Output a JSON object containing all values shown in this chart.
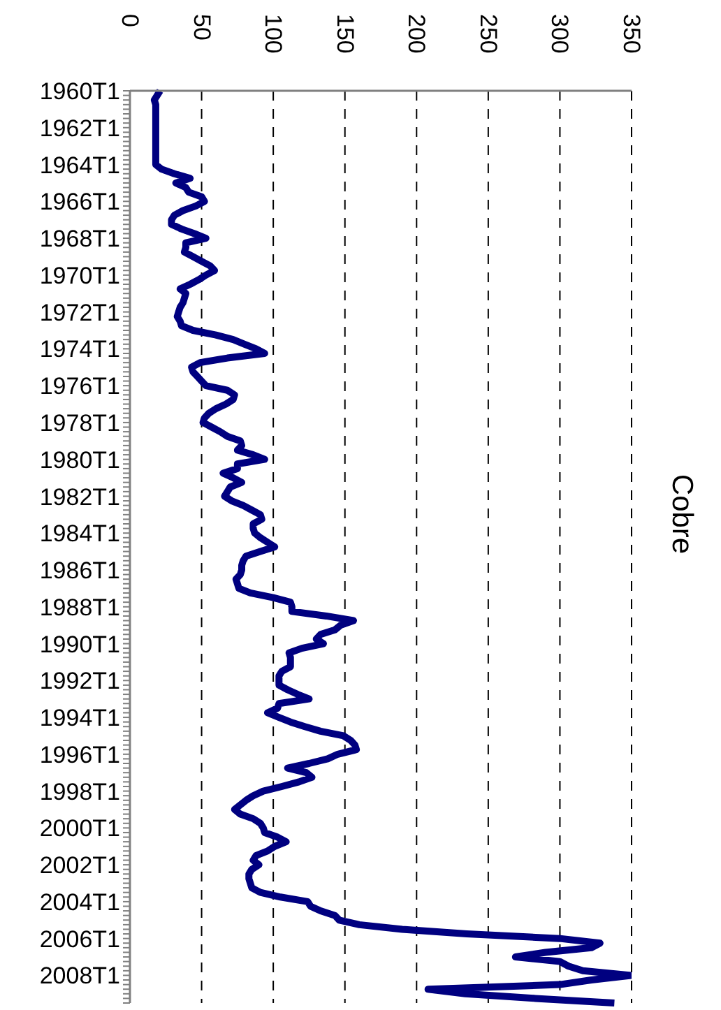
{
  "chart_data": {
    "type": "line",
    "title": "Cobre",
    "orientation": "horizontal",
    "categories": [
      "1960T1",
      null,
      null,
      null,
      null,
      null,
      null,
      null,
      "1962T1",
      null,
      null,
      null,
      null,
      null,
      null,
      null,
      "1964T1",
      null,
      null,
      null,
      null,
      null,
      null,
      null,
      "1966T1",
      null,
      null,
      null,
      null,
      null,
      null,
      null,
      "1968T1",
      null,
      null,
      null,
      null,
      null,
      null,
      null,
      "1970T1",
      null,
      null,
      null,
      null,
      null,
      null,
      null,
      "1972T1",
      null,
      null,
      null,
      null,
      null,
      null,
      null,
      "1974T1",
      null,
      null,
      null,
      null,
      null,
      null,
      null,
      "1976T1",
      null,
      null,
      null,
      null,
      null,
      null,
      null,
      "1978T1",
      null,
      null,
      null,
      null,
      null,
      null,
      null,
      "1980T1",
      null,
      null,
      null,
      null,
      null,
      null,
      null,
      "1982T1",
      null,
      null,
      null,
      null,
      null,
      null,
      null,
      "1984T1",
      null,
      null,
      null,
      null,
      null,
      null,
      null,
      "1986T1",
      null,
      null,
      null,
      null,
      null,
      null,
      null,
      "1988T1",
      null,
      null,
      null,
      null,
      null,
      null,
      null,
      "1990T1",
      null,
      null,
      null,
      null,
      null,
      null,
      null,
      "1992T1",
      null,
      null,
      null,
      null,
      null,
      null,
      null,
      "1994T1",
      null,
      null,
      null,
      null,
      null,
      null,
      null,
      "1996T1",
      null,
      null,
      null,
      null,
      null,
      null,
      null,
      "1998T1",
      null,
      null,
      null,
      null,
      null,
      null,
      null,
      "2000T1",
      null,
      null,
      null,
      null,
      null,
      null,
      null,
      "2002T1",
      null,
      null,
      null,
      null,
      null,
      null,
      null,
      "2004T1",
      null,
      null,
      null,
      null,
      null,
      null,
      null,
      "2006T1",
      null,
      null,
      null,
      null,
      null,
      null,
      null,
      "2008T1",
      null,
      null,
      null,
      null,
      null,
      null
    ],
    "series": [
      {
        "color": "#000080",
        "values": [
          21,
          19,
          17,
          18,
          18,
          18,
          18,
          18,
          18,
          18,
          18,
          18,
          18,
          18,
          18,
          18,
          18,
          22,
          31,
          42,
          32,
          39,
          41,
          50,
          52,
          46,
          37,
          31,
          29,
          29,
          36,
          45,
          53,
          39,
          39,
          38,
          44,
          50,
          56,
          59,
          53,
          48,
          42,
          35,
          39,
          38,
          37,
          35,
          34,
          33,
          35,
          36,
          44,
          60,
          72,
          80,
          88,
          94,
          68,
          49,
          43,
          44,
          47,
          50,
          53,
          68,
          73,
          72,
          67,
          60,
          55,
          52,
          51,
          57,
          63,
          68,
          77,
          78,
          75,
          86,
          94,
          75,
          75,
          65,
          72,
          78,
          70,
          68,
          66,
          71,
          79,
          85,
          91,
          92,
          86,
          86,
          87,
          91,
          96,
          101,
          91,
          81,
          79,
          78,
          78,
          77,
          74,
          75,
          76,
          84,
          100,
          112,
          113,
          113,
          137,
          156,
          147,
          143,
          133,
          130,
          135,
          120,
          111,
          112,
          112,
          112,
          106,
          104,
          104,
          104,
          110,
          117,
          125,
          104,
          103,
          96,
          104,
          112,
          122,
          133,
          149,
          154,
          157,
          158,
          145,
          138,
          125,
          110,
          123,
          127,
          118,
          106,
          93,
          86,
          81,
          77,
          73,
          77,
          86,
          91,
          93,
          94,
          103,
          109,
          101,
          96,
          88,
          86,
          90,
          85,
          83,
          83,
          84,
          85,
          91,
          105,
          124,
          126,
          133,
          143,
          146,
          160,
          190,
          235,
          300,
          328,
          322,
          290,
          269,
          300,
          306,
          316,
          350,
          322,
          300,
          208,
          234,
          283,
          338
        ]
      }
    ],
    "xlim": [
      0,
      350
    ],
    "xticks": [
      0,
      50,
      100,
      150,
      200,
      250,
      300,
      350
    ],
    "grid": "x",
    "line_style": "solid",
    "marker": "none"
  }
}
